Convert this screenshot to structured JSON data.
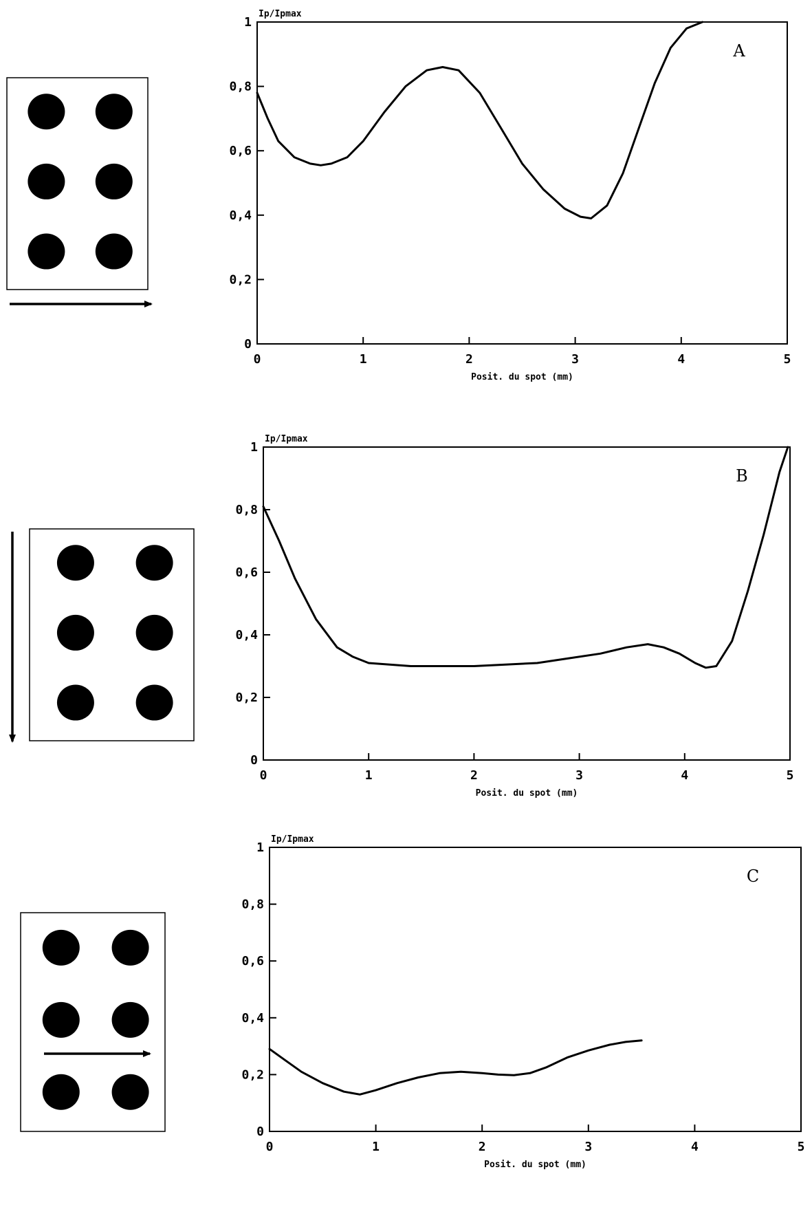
{
  "chart_data": [
    {
      "type": "line",
      "panel_label": "A",
      "ylabel": "Ip/Ipmax",
      "xlabel": "Posit. du spot (mm)",
      "xlim": [
        0,
        5
      ],
      "ylim": [
        0,
        1
      ],
      "x_ticks": [
        "0",
        "1",
        "2",
        "3",
        "4",
        "5"
      ],
      "y_ticks": [
        "0",
        "0,2",
        "0,4",
        "0,6",
        "0,8",
        "1"
      ],
      "grid": false,
      "scan_direction": "horizontal-right",
      "dot_grid": {
        "rows": 3,
        "cols": 2
      },
      "series": [
        {
          "x": [
            0,
            0.1,
            0.2,
            0.35,
            0.5,
            0.6,
            0.7,
            0.85,
            1.0,
            1.2,
            1.4,
            1.6,
            1.75,
            1.9,
            2.1,
            2.3,
            2.5,
            2.7,
            2.9,
            3.05,
            3.15,
            3.3,
            3.45,
            3.6,
            3.75,
            3.9,
            4.05,
            4.2
          ],
          "y": [
            0.78,
            0.7,
            0.63,
            0.58,
            0.56,
            0.555,
            0.56,
            0.58,
            0.63,
            0.72,
            0.8,
            0.85,
            0.86,
            0.85,
            0.78,
            0.67,
            0.56,
            0.48,
            0.42,
            0.395,
            0.39,
            0.43,
            0.53,
            0.67,
            0.81,
            0.92,
            0.98,
            1.0
          ]
        }
      ]
    },
    {
      "type": "line",
      "panel_label": "B",
      "ylabel": "Ip/Ipmax",
      "xlabel": "Posit. du spot (mm)",
      "xlim": [
        0,
        5
      ],
      "ylim": [
        0,
        1
      ],
      "x_ticks": [
        "0",
        "1",
        "2",
        "3",
        "4",
        "5"
      ],
      "y_ticks": [
        "0",
        "0,2",
        "0,4",
        "0,6",
        "0,8",
        "1"
      ],
      "grid": false,
      "scan_direction": "vertical-down",
      "dot_grid": {
        "rows": 3,
        "cols": 2
      },
      "series": [
        {
          "x": [
            0,
            0.15,
            0.3,
            0.5,
            0.7,
            0.85,
            1.0,
            1.2,
            1.4,
            1.7,
            2.0,
            2.3,
            2.6,
            2.9,
            3.2,
            3.45,
            3.65,
            3.8,
            3.95,
            4.1,
            4.2,
            4.3,
            4.45,
            4.6,
            4.75,
            4.9,
            4.98
          ],
          "y": [
            0.81,
            0.7,
            0.58,
            0.45,
            0.36,
            0.33,
            0.31,
            0.305,
            0.3,
            0.3,
            0.3,
            0.305,
            0.31,
            0.325,
            0.34,
            0.36,
            0.37,
            0.36,
            0.34,
            0.31,
            0.295,
            0.3,
            0.38,
            0.54,
            0.72,
            0.92,
            1.0
          ]
        }
      ]
    },
    {
      "type": "line",
      "panel_label": "C",
      "ylabel": "Ip/Ipmax",
      "xlabel": "Posit. du spot (mm)",
      "xlim": [
        0,
        5
      ],
      "ylim": [
        0,
        1
      ],
      "x_ticks": [
        "0",
        "1",
        "2",
        "3",
        "4",
        "5"
      ],
      "y_ticks": [
        "0",
        "0,2",
        "0,4",
        "0,6",
        "0,8",
        "1"
      ],
      "grid": false,
      "scan_direction": "horizontal-right",
      "dot_grid": {
        "rows": 3,
        "cols": 2
      },
      "series": [
        {
          "x": [
            0,
            0.15,
            0.3,
            0.5,
            0.7,
            0.85,
            1.0,
            1.2,
            1.4,
            1.6,
            1.8,
            2.0,
            2.15,
            2.3,
            2.45,
            2.6,
            2.8,
            3.0,
            3.2,
            3.35,
            3.5
          ],
          "y": [
            0.29,
            0.25,
            0.21,
            0.17,
            0.14,
            0.13,
            0.145,
            0.17,
            0.19,
            0.205,
            0.21,
            0.205,
            0.2,
            0.198,
            0.205,
            0.225,
            0.26,
            0.285,
            0.305,
            0.315,
            0.32
          ]
        }
      ]
    }
  ]
}
